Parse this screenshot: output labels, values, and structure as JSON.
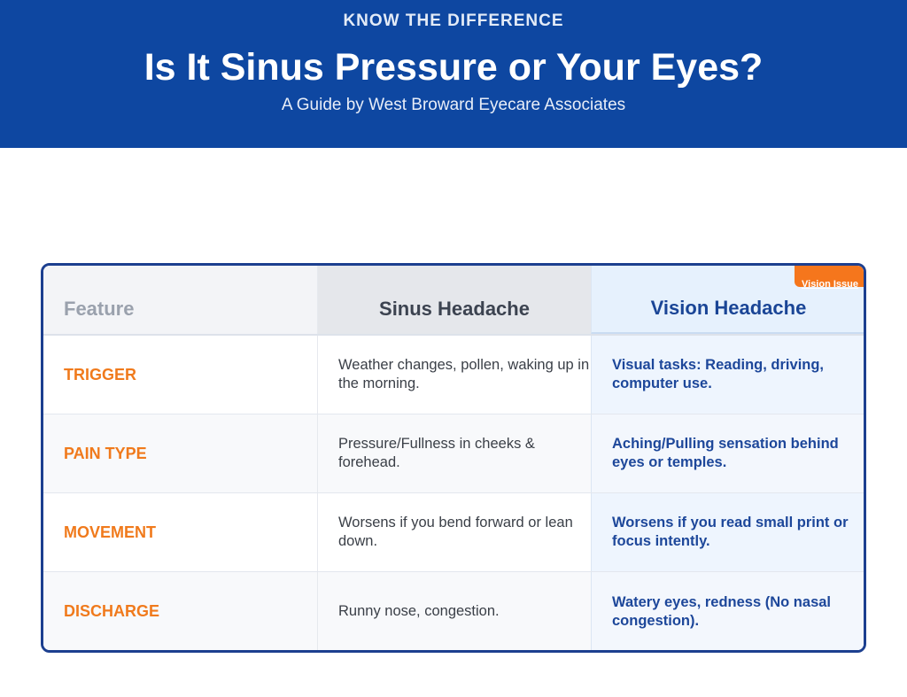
{
  "header": {
    "kicker": "KNOW THE DIFFERENCE",
    "title": "Is It Sinus Pressure or Your Eyes?",
    "subtitle": "A Guide by West Broward Eyecare Associates"
  },
  "table": {
    "columns": [
      "Feature",
      "Sinus Headache",
      "Vision Headache"
    ],
    "badge": "Vision Issue",
    "rows": [
      {
        "feature": "TRIGGER",
        "sinus": "Weather changes, pollen, waking up in the morning.",
        "vision": "Visual tasks: Reading, driving, computer use."
      },
      {
        "feature": "PAIN TYPE",
        "sinus": "Pressure/Fullness in cheeks & forehead.",
        "vision": "Aching/Pulling sensation behind eyes or temples."
      },
      {
        "feature": "MOVEMENT",
        "sinus": "Worsens if you bend forward or lean down.",
        "vision": "Worsens if you read small print or focus intently."
      },
      {
        "feature": "DISCHARGE",
        "sinus": "Runny nose, congestion.",
        "vision": "Watery eyes, redness (No nasal congestion)."
      }
    ]
  },
  "colors": {
    "brand": "#0e47a1",
    "accent": "#f5761c"
  }
}
